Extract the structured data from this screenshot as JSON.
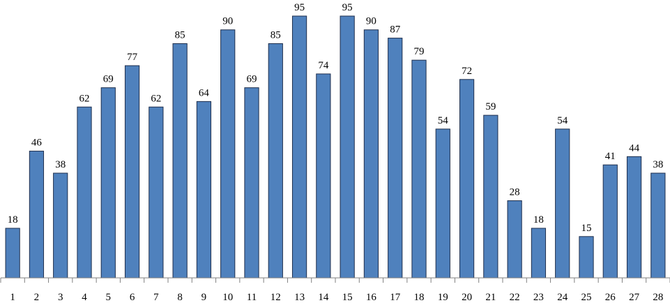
{
  "chart_data": {
    "type": "bar",
    "categories": [
      "1",
      "2",
      "3",
      "4",
      "5",
      "6",
      "7",
      "8",
      "9",
      "10",
      "11",
      "12",
      "13",
      "14",
      "15",
      "16",
      "17",
      "18",
      "19",
      "20",
      "21",
      "22",
      "23",
      "24",
      "25",
      "26",
      "27",
      "28"
    ],
    "values": [
      18,
      46,
      38,
      62,
      69,
      77,
      62,
      85,
      64,
      90,
      69,
      85,
      95,
      74,
      95,
      90,
      87,
      79,
      54,
      72,
      59,
      28,
      18,
      54,
      15,
      41,
      44,
      38
    ],
    "data_labels": true,
    "title": "",
    "xlabel": "",
    "ylabel": "",
    "ylim": [
      0,
      100
    ],
    "grid": false,
    "legend": "none",
    "bar_color": "#4f81bd",
    "bar_edge_color": "#1f2f4d"
  }
}
